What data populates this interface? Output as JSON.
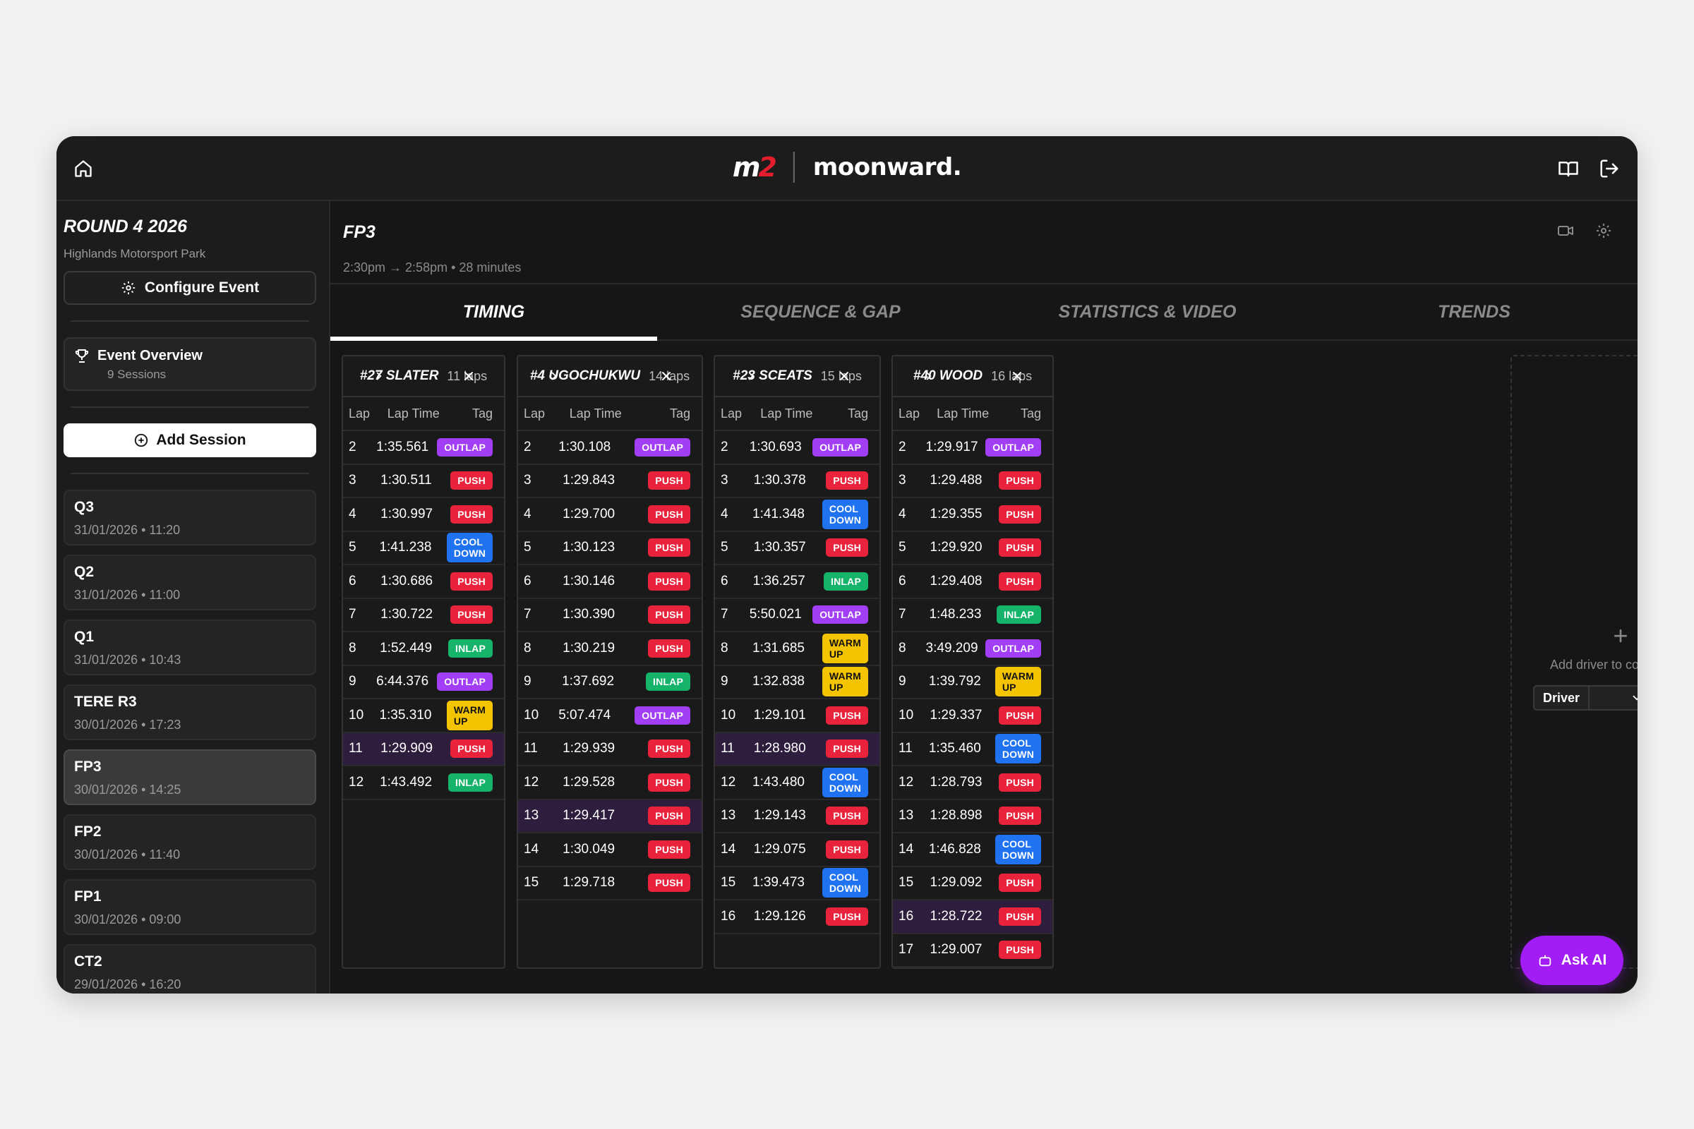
{
  "brand": {
    "logo_left": "m",
    "logo_left_accent": "2",
    "logo_right": "moonward."
  },
  "event": {
    "title": "ROUND 4 2026",
    "venue": "Highlands Motorsport Park",
    "configure_label": "Configure Event",
    "overview_label": "Event Overview",
    "overview_sub": "9 Sessions",
    "add_session_label": "Add Session"
  },
  "sessions": [
    {
      "name": "Q3",
      "date": "31/01/2026 • 11:20"
    },
    {
      "name": "Q2",
      "date": "31/01/2026 • 11:00"
    },
    {
      "name": "Q1",
      "date": "31/01/2026 • 10:43"
    },
    {
      "name": "TERE R3",
      "date": "30/01/2026 • 17:23"
    },
    {
      "name": "FP3",
      "date": "30/01/2026 • 14:25",
      "active": true
    },
    {
      "name": "FP2",
      "date": "30/01/2026 • 11:40"
    },
    {
      "name": "FP1",
      "date": "30/01/2026 • 09:00"
    },
    {
      "name": "CT2",
      "date": "29/01/2026 • 16:20"
    }
  ],
  "current_session": {
    "title": "FP3",
    "time": "2:30pm → 2:58pm • 28 minutes"
  },
  "tabs": [
    {
      "label": "TIMING",
      "active": true
    },
    {
      "label": "SEQUENCE & GAP"
    },
    {
      "label": "STATISTICS & VIDEO"
    },
    {
      "label": "TRENDS"
    }
  ],
  "columns": {
    "lap": "Lap",
    "time": "Lap Time",
    "tag": "Tag"
  },
  "tag_colors": {
    "OUTLAP": "#a23ef5",
    "PUSH": "#e8233b",
    "COOL DOWN": "#1f72f0",
    "INLAP": "#16b36a",
    "WARM UP": "#f5c400"
  },
  "drivers": [
    {
      "name": "#27 SLATER",
      "laps_label": "11 laps",
      "best_lap": 11,
      "laps": [
        [
          "2",
          "1:35.561",
          "OUTLAP"
        ],
        [
          "3",
          "1:30.511",
          "PUSH"
        ],
        [
          "4",
          "1:30.997",
          "PUSH"
        ],
        [
          "5",
          "1:41.238",
          "COOL DOWN"
        ],
        [
          "6",
          "1:30.686",
          "PUSH"
        ],
        [
          "7",
          "1:30.722",
          "PUSH"
        ],
        [
          "8",
          "1:52.449",
          "INLAP"
        ],
        [
          "9",
          "6:44.376",
          "OUTLAP"
        ],
        [
          "10",
          "1:35.310",
          "WARM UP"
        ],
        [
          "11",
          "1:29.909",
          "PUSH"
        ],
        [
          "12",
          "1:43.492",
          "INLAP"
        ]
      ]
    },
    {
      "name": "#4 UGOCHUKWU",
      "laps_label": "14 laps",
      "best_lap": 13,
      "laps": [
        [
          "2",
          "1:30.108",
          "OUTLAP"
        ],
        [
          "3",
          "1:29.843",
          "PUSH"
        ],
        [
          "4",
          "1:29.700",
          "PUSH"
        ],
        [
          "5",
          "1:30.123",
          "PUSH"
        ],
        [
          "6",
          "1:30.146",
          "PUSH"
        ],
        [
          "7",
          "1:30.390",
          "PUSH"
        ],
        [
          "8",
          "1:30.219",
          "PUSH"
        ],
        [
          "9",
          "1:37.692",
          "INLAP"
        ],
        [
          "10",
          "5:07.474",
          "OUTLAP"
        ],
        [
          "11",
          "1:29.939",
          "PUSH"
        ],
        [
          "12",
          "1:29.528",
          "PUSH"
        ],
        [
          "13",
          "1:29.417",
          "PUSH"
        ],
        [
          "14",
          "1:30.049",
          "PUSH"
        ],
        [
          "15",
          "1:29.718",
          "PUSH"
        ]
      ]
    },
    {
      "name": "#23 SCEATS",
      "laps_label": "15 laps",
      "best_lap": 11,
      "laps": [
        [
          "2",
          "1:30.693",
          "OUTLAP"
        ],
        [
          "3",
          "1:30.378",
          "PUSH"
        ],
        [
          "4",
          "1:41.348",
          "COOL DOWN"
        ],
        [
          "5",
          "1:30.357",
          "PUSH"
        ],
        [
          "6",
          "1:36.257",
          "INLAP"
        ],
        [
          "7",
          "5:50.021",
          "OUTLAP"
        ],
        [
          "8",
          "1:31.685",
          "WARM UP"
        ],
        [
          "9",
          "1:32.838",
          "WARM UP"
        ],
        [
          "10",
          "1:29.101",
          "PUSH"
        ],
        [
          "11",
          "1:28.980",
          "PUSH"
        ],
        [
          "12",
          "1:43.480",
          "COOL DOWN"
        ],
        [
          "13",
          "1:29.143",
          "PUSH"
        ],
        [
          "14",
          "1:29.075",
          "PUSH"
        ],
        [
          "15",
          "1:39.473",
          "COOL DOWN"
        ],
        [
          "16",
          "1:29.126",
          "PUSH"
        ]
      ]
    },
    {
      "name": "#40 WOOD",
      "laps_label": "16 laps",
      "best_lap": 16,
      "laps": [
        [
          "2",
          "1:29.917",
          "OUTLAP"
        ],
        [
          "3",
          "1:29.488",
          "PUSH"
        ],
        [
          "4",
          "1:29.355",
          "PUSH"
        ],
        [
          "5",
          "1:29.920",
          "PUSH"
        ],
        [
          "6",
          "1:29.408",
          "PUSH"
        ],
        [
          "7",
          "1:48.233",
          "INLAP"
        ],
        [
          "8",
          "3:49.209",
          "OUTLAP"
        ],
        [
          "9",
          "1:39.792",
          "WARM UP"
        ],
        [
          "10",
          "1:29.337",
          "PUSH"
        ],
        [
          "11",
          "1:35.460",
          "COOL DOWN"
        ],
        [
          "12",
          "1:28.793",
          "PUSH"
        ],
        [
          "13",
          "1:28.898",
          "PUSH"
        ],
        [
          "14",
          "1:46.828",
          "COOL DOWN"
        ],
        [
          "15",
          "1:29.092",
          "PUSH"
        ],
        [
          "16",
          "1:28.722",
          "PUSH"
        ],
        [
          "17",
          "1:29.007",
          "PUSH"
        ]
      ]
    }
  ],
  "compare": {
    "label": "Add driver to compare",
    "select_label": "Driver"
  },
  "ask_ai_label": "Ask AI"
}
